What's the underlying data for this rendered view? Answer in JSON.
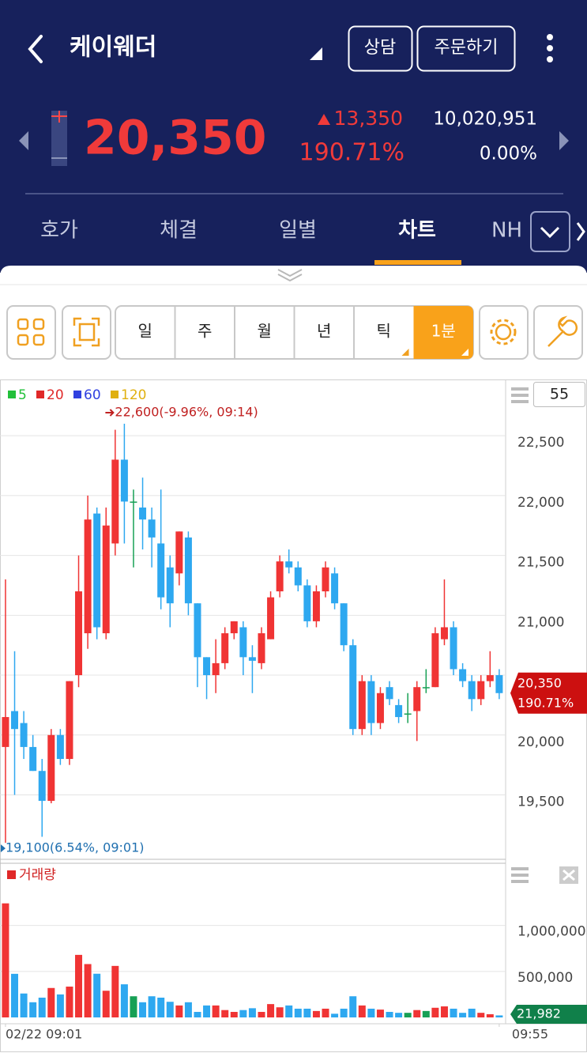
{
  "header": {
    "title": "케이웨더",
    "buttons": [
      "상담",
      "주문하기"
    ]
  },
  "quote": {
    "price": "20,350",
    "change": "13,350",
    "change_rate": "190.71%",
    "volume": "10,020,951",
    "rate": "0.00%"
  },
  "tabs": [
    "호가",
    "체결",
    "일별",
    "차트",
    "NH"
  ],
  "toolbar": [
    "일",
    "주",
    "월",
    "년",
    "틱",
    "1분"
  ],
  "chart_data": [
    {
      "type": "candlestick",
      "legend": [
        {
          "name": "5",
          "color": "#22c03a"
        },
        {
          "name": "20",
          "color": "#e02828"
        },
        {
          "name": "60",
          "color": "#3040e0"
        },
        {
          "name": "120",
          "color": "#e0b010"
        }
      ],
      "period_box": "55",
      "colors": {
        "up": "#f03434",
        "down": "#2ea8f0",
        "flat": "#17a055"
      },
      "open": [
        19900,
        20200,
        20100,
        19900,
        19700,
        19450,
        20000,
        19800,
        20500,
        20850,
        21850,
        20850,
        21600,
        22300,
        21950,
        21900,
        21800,
        21600,
        21400,
        21350,
        21650,
        21100,
        20650,
        20500,
        20600,
        20850,
        20900,
        20650,
        20600,
        20800,
        21200,
        21450,
        21400,
        21250,
        20950,
        21200,
        21350,
        21100,
        20750,
        20050,
        20450,
        20100,
        20400,
        20250,
        20180,
        20200,
        20400,
        20400,
        20800,
        20900,
        20550,
        20450,
        20300,
        20450,
        20500
      ],
      "high": [
        21300,
        20700,
        20200,
        20000,
        19800,
        20050,
        20050,
        20450,
        21500,
        22000,
        21900,
        21900,
        22550,
        22600,
        22050,
        22150,
        21900,
        22050,
        21500,
        21700,
        21700,
        21100,
        20650,
        20800,
        20900,
        20950,
        20950,
        20750,
        20900,
        21200,
        21500,
        21550,
        21450,
        21300,
        21250,
        21450,
        21400,
        21100,
        20800,
        20500,
        20500,
        20400,
        20450,
        20300,
        20350,
        20450,
        20550,
        20900,
        21300,
        20950,
        20600,
        20500,
        20500,
        20700,
        20550
      ],
      "low": [
        19100,
        19500,
        19800,
        19700,
        19150,
        19430,
        19750,
        19750,
        20400,
        20720,
        20800,
        20800,
        21500,
        21600,
        21400,
        21550,
        21400,
        21050,
        20900,
        21250,
        21000,
        20400,
        20300,
        20350,
        20550,
        20800,
        20500,
        20350,
        20550,
        20800,
        21150,
        21350,
        21200,
        20900,
        20900,
        21150,
        21050,
        20700,
        20000,
        20000,
        20000,
        20050,
        20250,
        20100,
        20100,
        19950,
        20350,
        20400,
        20750,
        20500,
        20400,
        20200,
        20250,
        20400,
        20300
      ],
      "close": [
        20150,
        20050,
        19900,
        19700,
        19450,
        20000,
        19800,
        20450,
        21200,
        21800,
        20900,
        21750,
        22300,
        21950,
        21950,
        21800,
        21650,
        21150,
        21100,
        21700,
        21100,
        20650,
        20500,
        20600,
        20850,
        20950,
        20650,
        20620,
        20850,
        21150,
        21450,
        21400,
        21250,
        20950,
        21200,
        21400,
        21100,
        20750,
        20050,
        20450,
        20100,
        20350,
        20300,
        20150,
        20180,
        20400,
        20400,
        20850,
        20900,
        20550,
        20450,
        20300,
        20450,
        20500,
        20350
      ],
      "xlim": [
        -0.6,
        54.7
      ],
      "ylim": [
        18975,
        22950
      ],
      "yticks": [
        {
          "value": 19500,
          "label": "19,500"
        },
        {
          "value": 20000,
          "label": "20,000"
        },
        {
          "value": 20500,
          "label": "20,500"
        },
        {
          "value": 21000,
          "label": "21,000"
        },
        {
          "value": 21500,
          "label": "21,500"
        },
        {
          "value": 22000,
          "label": "22,000"
        },
        {
          "value": 22500,
          "label": "22,500"
        }
      ],
      "high_annotation": "22,600(-9.96%, 09:14)",
      "low_annotation": "19,100(6.54%, 09:01)",
      "price_tag": "20,350",
      "change_tag": "190.71%"
    },
    {
      "type": "bar",
      "title": "거래량",
      "values": [
        1240000,
        474000,
        260000,
        165000,
        215000,
        320000,
        250000,
        335000,
        680000,
        580000,
        475000,
        290000,
        560000,
        360000,
        230000,
        165000,
        230000,
        215000,
        170000,
        130000,
        165000,
        60000,
        130000,
        130000,
        80000,
        60000,
        80000,
        100000,
        60000,
        145000,
        110000,
        130000,
        95000,
        95000,
        70000,
        95000,
        40000,
        95000,
        230000,
        130000,
        95000,
        85000,
        60000,
        50000,
        50000,
        80000,
        70000,
        105000,
        120000,
        95000,
        50000,
        95000,
        50000,
        35000,
        21982
      ],
      "value_tag": "21,982",
      "xlim": [
        -0.6,
        54.7
      ],
      "xticks": [
        {
          "value": 0,
          "label": "02/22 09:01"
        },
        {
          "value": 54,
          "label": "09:55"
        }
      ],
      "ylim": [
        0,
        1650000
      ],
      "yticks": [
        {
          "value": 500000,
          "label": "500,000"
        },
        {
          "value": 1000000,
          "label": "1,000,000"
        }
      ]
    }
  ]
}
